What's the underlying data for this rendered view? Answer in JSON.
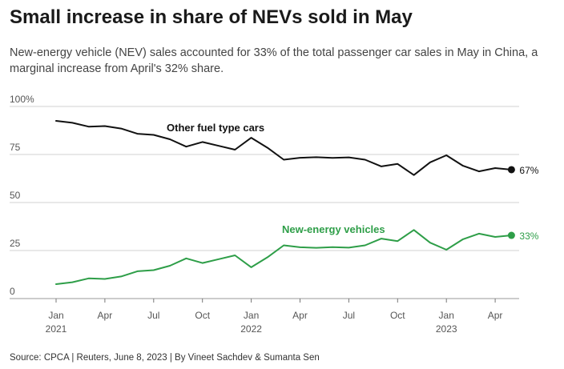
{
  "header": {
    "title": "Small increase in share of NEVs sold in May",
    "subtitle": "New-energy vehicle (NEV) sales accounted for 33% of the total passenger car sales in May in China, a marginal increase from April's 32% share."
  },
  "footer": {
    "source": "Source: CPCA | Reuters, June 8, 2023 | By Vineet Sachdev & Sumanta Sen"
  },
  "chart_data": {
    "type": "line",
    "title": "Small increase in share of NEVs sold in May",
    "xlabel": "",
    "ylabel": "",
    "ylim": [
      0,
      100
    ],
    "grid": true,
    "y_ticks": [
      {
        "value": 100,
        "label": "100%"
      },
      {
        "value": 75,
        "label": "75"
      },
      {
        "value": 50,
        "label": "50"
      },
      {
        "value": 25,
        "label": "25"
      },
      {
        "value": 0,
        "label": "0"
      }
    ],
    "x_ticks": [
      {
        "index": 0,
        "label": "Jan",
        "year": "2021"
      },
      {
        "index": 3,
        "label": "Apr",
        "year": ""
      },
      {
        "index": 6,
        "label": "Jul",
        "year": ""
      },
      {
        "index": 9,
        "label": "Oct",
        "year": ""
      },
      {
        "index": 12,
        "label": "Jan",
        "year": "2022"
      },
      {
        "index": 15,
        "label": "Apr",
        "year": ""
      },
      {
        "index": 18,
        "label": "Jul",
        "year": ""
      },
      {
        "index": 21,
        "label": "Oct",
        "year": ""
      },
      {
        "index": 24,
        "label": "Jan",
        "year": "2023"
      },
      {
        "index": 27,
        "label": "Apr",
        "year": ""
      }
    ],
    "series": [
      {
        "name": "Other fuel type cars",
        "color": "#111111",
        "end_label": "67%",
        "values": [
          92.5,
          91.5,
          89.5,
          89.8,
          88.5,
          85.8,
          85.2,
          82.9,
          79.1,
          81.5,
          79.5,
          77.5,
          83.7,
          78.5,
          72.3,
          73.3,
          73.6,
          73.2,
          73.5,
          72.3,
          68.8,
          70.1,
          64.3,
          70.9,
          74.6,
          69.2,
          66.2,
          67.9,
          67.1
        ]
      },
      {
        "name": "New-energy vehicles",
        "color": "#2e9e48",
        "end_label": "33%",
        "values": [
          7.5,
          8.5,
          10.5,
          10.2,
          11.5,
          14.2,
          14.8,
          17.1,
          20.9,
          18.5,
          20.5,
          22.5,
          16.3,
          21.5,
          27.7,
          26.7,
          26.4,
          26.8,
          26.5,
          27.7,
          31.2,
          29.9,
          35.7,
          29.1,
          25.4,
          30.8,
          33.8,
          32.1,
          32.9
        ]
      }
    ]
  }
}
